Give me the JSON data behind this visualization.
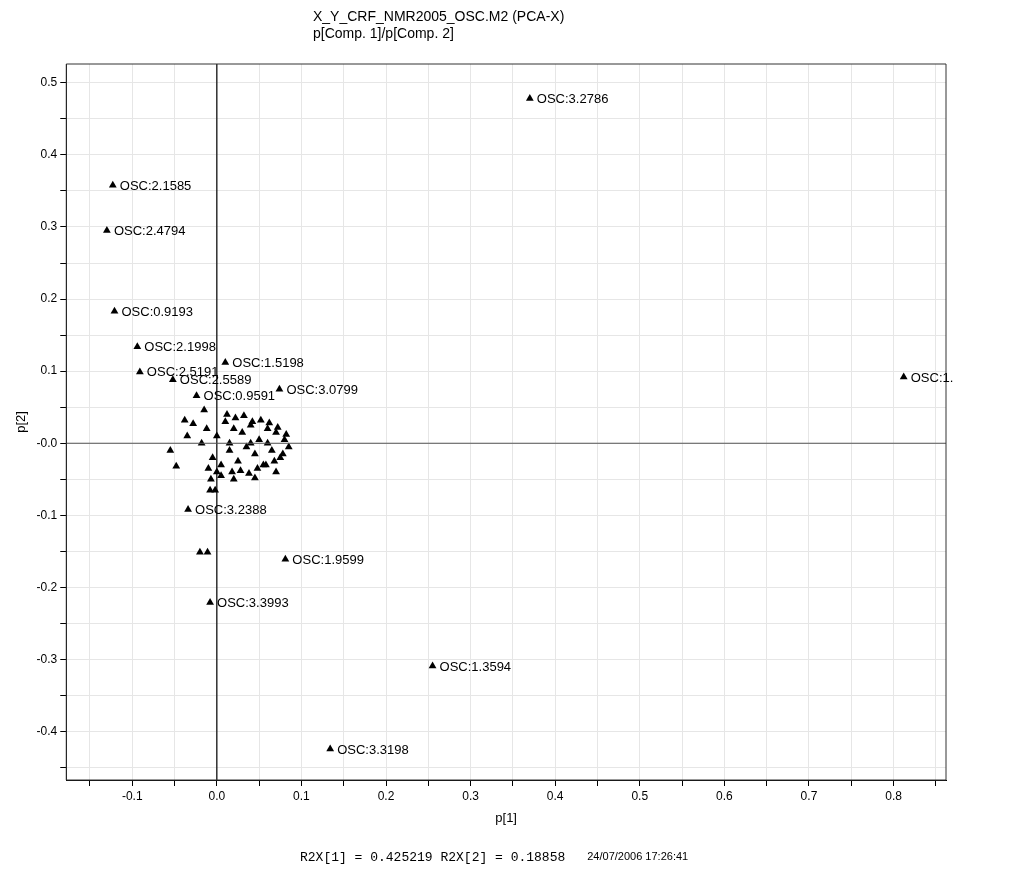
{
  "chart_data": {
    "type": "scatter",
    "title": "X_Y_CRF_NMR2005_OSC.M2 (PCA-X)",
    "subtitle": "p[Comp. 1]/p[Comp. 2]",
    "xlabel": "p[1]",
    "ylabel": "p[2]",
    "x": [
      0.37,
      -0.123,
      -0.13,
      -0.121,
      -0.094,
      -0.091,
      -0.052,
      0.01,
      -0.024,
      0.074,
      0.812,
      -0.034,
      -0.02,
      -0.011,
      0.081,
      -0.008,
      0.255,
      0.134,
      -0.008,
      -0.002,
      -0.055,
      -0.048,
      -0.038,
      -0.035,
      -0.028,
      -0.015,
      -0.007,
      -0.018,
      -0.012,
      -0.005,
      0.0,
      0.005,
      0.01,
      0.015,
      0.02,
      0.025,
      0.03,
      0.035,
      0.04,
      0.045,
      0.05,
      0.055,
      0.06,
      0.065,
      0.07,
      0.075,
      0.08,
      0.085,
      -0.01,
      0.0,
      0.012,
      0.022,
      0.032,
      0.042,
      0.052,
      0.062,
      0.072,
      0.082,
      0.005,
      0.018,
      0.028,
      0.038,
      0.048,
      0.058,
      0.068,
      0.078,
      0.015,
      0.04,
      0.06,
      0.02,
      0.045,
      0.07
    ],
    "values": [
      0.478,
      0.358,
      0.295,
      0.183,
      0.134,
      0.099,
      0.088,
      0.112,
      0.066,
      0.075,
      0.092,
      -0.092,
      -0.151,
      -0.151,
      -0.161,
      -0.221,
      -0.309,
      -0.424,
      -0.065,
      -0.065,
      -0.01,
      -0.032,
      0.032,
      0.01,
      0.027,
      0.046,
      -0.05,
      0.0,
      0.02,
      -0.02,
      0.01,
      -0.03,
      0.03,
      -0.01,
      0.02,
      -0.025,
      0.015,
      -0.005,
      0.025,
      -0.015,
      0.005,
      -0.03,
      0.02,
      -0.01,
      0.015,
      -0.02,
      0.005,
      -0.005,
      -0.035,
      -0.04,
      0.04,
      0.035,
      0.038,
      0.03,
      0.032,
      0.028,
      0.022,
      0.012,
      -0.045,
      -0.04,
      -0.038,
      -0.042,
      -0.035,
      -0.03,
      -0.025,
      -0.015,
      0.0,
      0.0,
      0.0,
      -0.05,
      -0.048,
      -0.04
    ],
    "color": "#000000",
    "marker": "triangle",
    "xlim": [
      -0.178,
      0.862
    ],
    "ylim": [
      -0.467,
      0.526
    ],
    "xticks": [
      {
        "value": -0.15,
        "label": null
      },
      -0.1,
      {
        "value": -0.05,
        "label": null
      },
      {
        "value": 0,
        "label": "0.0"
      },
      {
        "value": 0.05,
        "label": null
      },
      0.1,
      {
        "value": 0.15,
        "label": null
      },
      0.2,
      {
        "value": 0.25,
        "label": null
      },
      0.3,
      {
        "value": 0.35,
        "label": null
      },
      0.4,
      {
        "value": 0.45,
        "label": null
      },
      0.5,
      {
        "value": 0.55,
        "label": null
      },
      0.6,
      {
        "value": 0.65,
        "label": null
      },
      0.7,
      {
        "value": 0.75,
        "label": null
      },
      0.8,
      {
        "value": 0.85,
        "label": null
      }
    ],
    "yticks": [
      {
        "value": -0.45,
        "label": null
      },
      -0.4,
      {
        "value": -0.35,
        "label": null
      },
      -0.3,
      {
        "value": -0.25,
        "label": null
      },
      -0.2,
      {
        "value": -0.15,
        "label": null
      },
      -0.1,
      {
        "value": -0.05,
        "label": null
      },
      {
        "value": 0,
        "label": "-0.0"
      },
      {
        "value": 0.05,
        "label": null
      },
      0.1,
      {
        "value": 0.15,
        "label": null
      },
      0.2,
      {
        "value": 0.25,
        "label": null
      },
      0.3,
      {
        "value": 0.35,
        "label": null
      },
      0.4,
      {
        "value": 0.45,
        "label": null
      },
      0.5
    ],
    "grid": true,
    "legend": false,
    "ref_lines": [
      {
        "axis": "x",
        "value": 0,
        "color": "#000000"
      },
      {
        "axis": "y",
        "value": 0,
        "color": "#555555"
      }
    ],
    "annotations": [
      {
        "text": "OSC:3.2786",
        "x": 0.37,
        "y": 0.478
      },
      {
        "text": "OSC:2.1585",
        "x": -0.123,
        "y": 0.358
      },
      {
        "text": "OSC:2.4794",
        "x": -0.13,
        "y": 0.295
      },
      {
        "text": "OSC:0.9193",
        "x": -0.121,
        "y": 0.183
      },
      {
        "text": "OSC:2.1998",
        "x": -0.094,
        "y": 0.134
      },
      {
        "text": "OSC:2.5191",
        "x": -0.091,
        "y": 0.099
      },
      {
        "text": "OSC:2.5589",
        "x": -0.052,
        "y": 0.088
      },
      {
        "text": "OSC:1.5198",
        "x": 0.01,
        "y": 0.112
      },
      {
        "text": "OSC:0.9591",
        "x": -0.024,
        "y": 0.066
      },
      {
        "text": "OSC:3.0799",
        "x": 0.074,
        "y": 0.075
      },
      {
        "text": "OSC:1.",
        "x": 0.812,
        "y": 0.092
      },
      {
        "text": "OSC:3.2388",
        "x": -0.034,
        "y": -0.092
      },
      {
        "text": "OSC:1.9599",
        "x": 0.081,
        "y": -0.161
      },
      {
        "text": "OSC:3.3993",
        "x": -0.008,
        "y": -0.221
      },
      {
        "text": "OSC:1.3594",
        "x": 0.255,
        "y": -0.309
      },
      {
        "text": "OSC:3.3198",
        "x": 0.134,
        "y": -0.424
      },
      "R2X[1] = 0.425219 R2X[2] = 0.18858",
      "24/07/2006 17:26:41"
    ]
  }
}
